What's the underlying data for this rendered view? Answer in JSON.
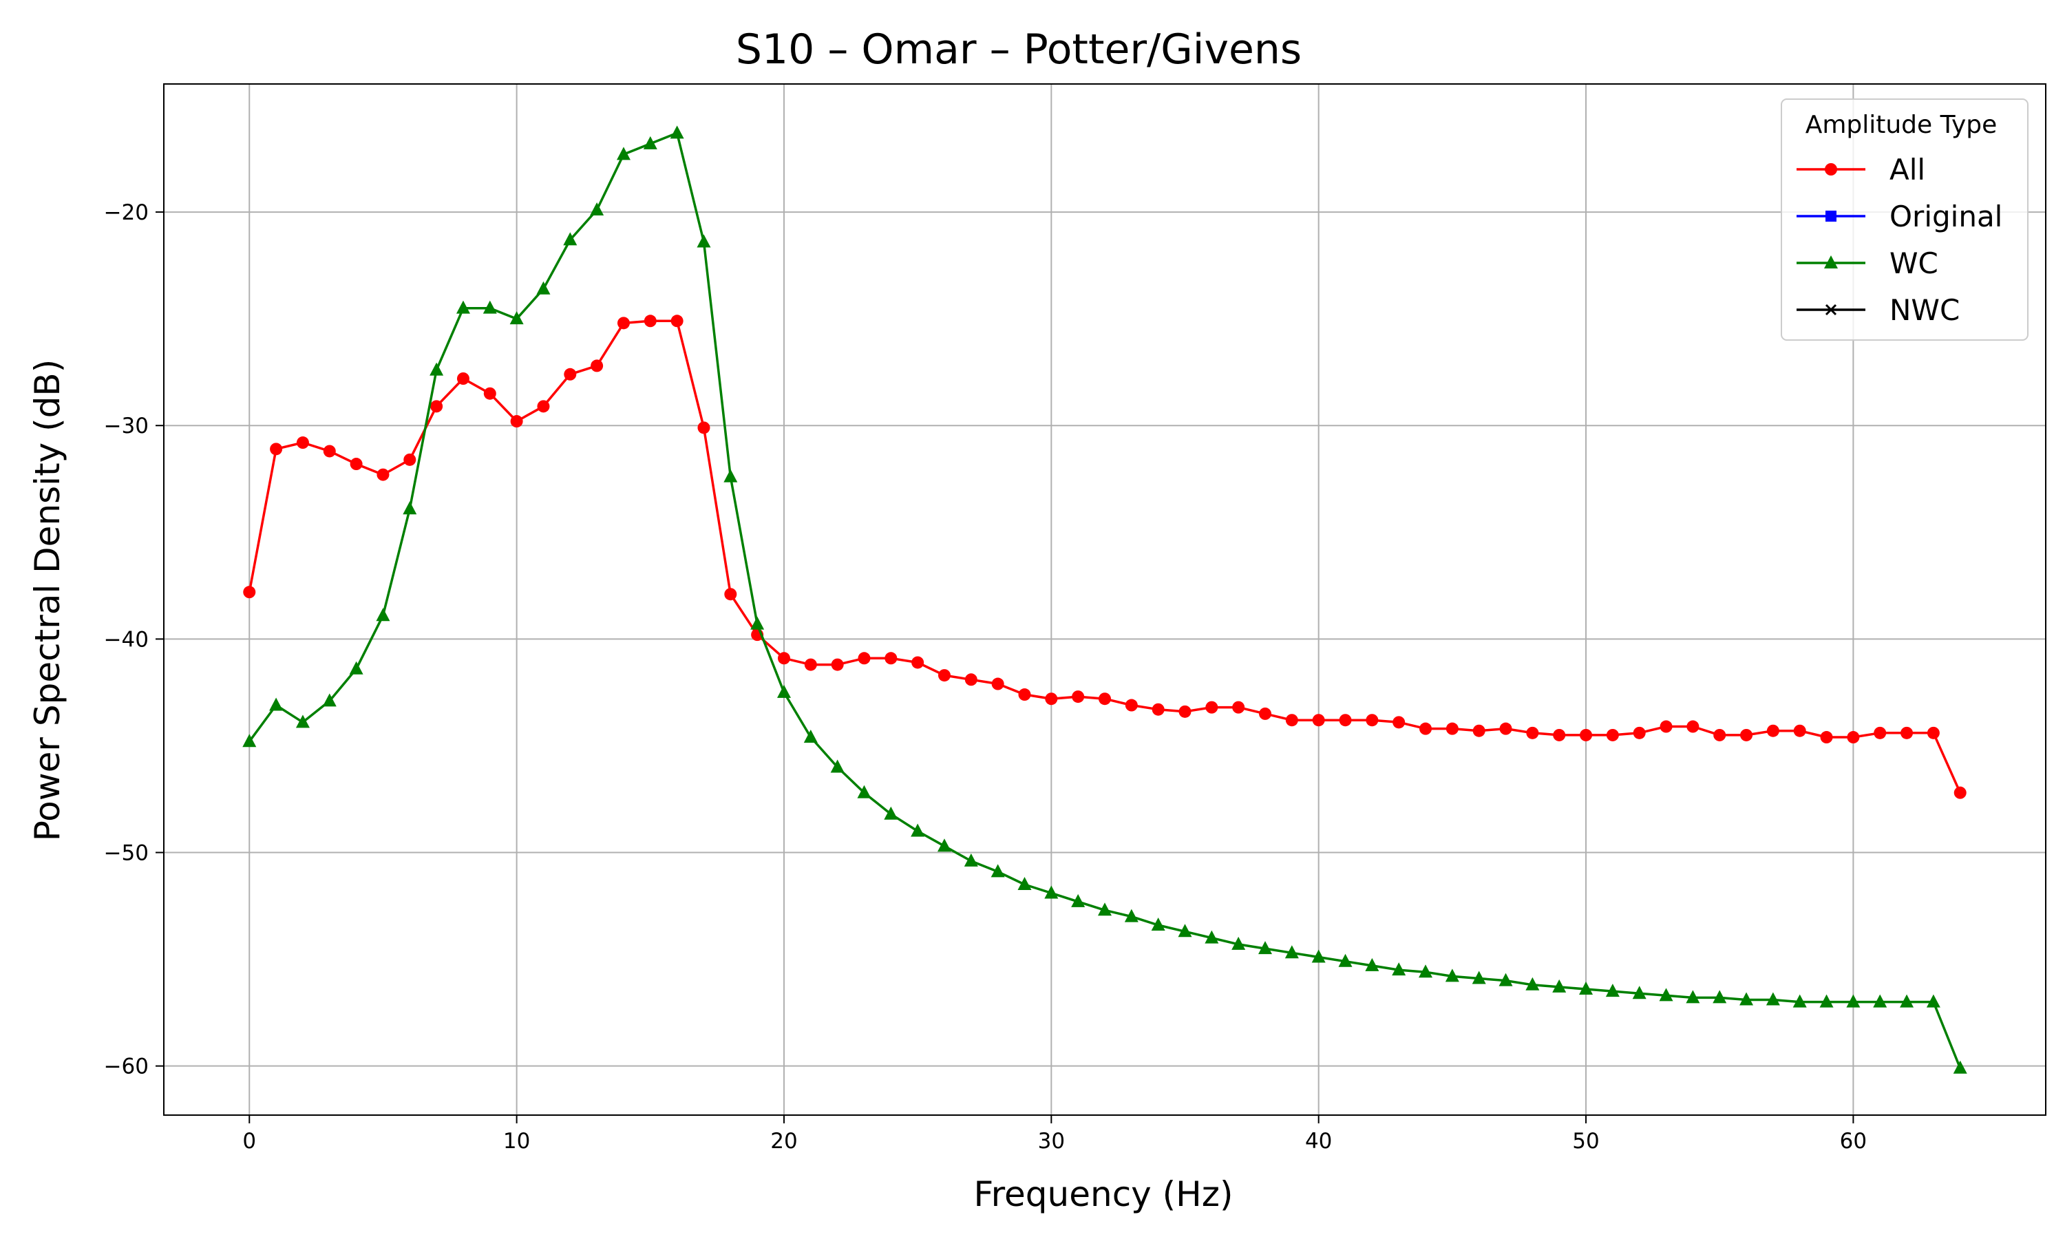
{
  "chart_data": {
    "type": "line",
    "title": "S10 – Omar – Potter/Givens",
    "xlabel": "Frequency (Hz)",
    "ylabel": "Power Spectral Density (dB)",
    "xlim": [
      -3.2,
      67.2
    ],
    "ylim": [
      -62.3,
      -14.0
    ],
    "xticks": [
      0,
      10,
      20,
      30,
      40,
      50,
      60
    ],
    "yticks": [
      -60,
      -50,
      -40,
      -30,
      -20
    ],
    "grid": true,
    "legend": {
      "title": "Amplitude Type",
      "placement": "top-right"
    },
    "series": [
      {
        "name": "All",
        "color": "#ff0000",
        "marker": "circle",
        "x": [
          0,
          1,
          2,
          3,
          4,
          5,
          6,
          7,
          8,
          9,
          10,
          11,
          12,
          13,
          14,
          15,
          16,
          17,
          18,
          19,
          20,
          21,
          22,
          23,
          24,
          25,
          26,
          27,
          28,
          29,
          30,
          31,
          32,
          33,
          34,
          35,
          36,
          37,
          38,
          39,
          40,
          41,
          42,
          43,
          44,
          45,
          46,
          47,
          48,
          49,
          50,
          51,
          52,
          53,
          54,
          55,
          56,
          57,
          58,
          59,
          60,
          61,
          62,
          63,
          64
        ],
        "values": [
          -37.8,
          -31.1,
          -30.8,
          -31.2,
          -31.8,
          -32.3,
          -31.6,
          -29.1,
          -27.8,
          -28.5,
          -29.8,
          -29.1,
          -27.6,
          -27.2,
          -25.2,
          -25.1,
          -25.1,
          -30.1,
          -37.9,
          -39.8,
          -40.9,
          -41.2,
          -41.2,
          -40.9,
          -40.9,
          -41.1,
          -41.7,
          -41.9,
          -42.1,
          -42.6,
          -42.8,
          -42.7,
          -42.8,
          -43.1,
          -43.3,
          -43.4,
          -43.2,
          -43.2,
          -43.5,
          -43.8,
          -43.8,
          -43.8,
          -43.8,
          -43.9,
          -44.2,
          -44.2,
          -44.3,
          -44.2,
          -44.4,
          -44.5,
          -44.5,
          -44.5,
          -44.4,
          -44.1,
          -44.1,
          -44.5,
          -44.5,
          -44.3,
          -44.3,
          -44.6,
          -44.6,
          -44.4,
          -44.4,
          -44.4,
          -47.2
        ]
      },
      {
        "name": "Original",
        "color": "#0000ff",
        "marker": "square",
        "x": [],
        "values": []
      },
      {
        "name": "WC",
        "color": "#008000",
        "marker": "triangle",
        "x": [
          0,
          1,
          2,
          3,
          4,
          5,
          6,
          7,
          8,
          9,
          10,
          11,
          12,
          13,
          14,
          15,
          16,
          17,
          18,
          19,
          20,
          21,
          22,
          23,
          24,
          25,
          26,
          27,
          28,
          29,
          30,
          31,
          32,
          33,
          34,
          35,
          36,
          37,
          38,
          39,
          40,
          41,
          42,
          43,
          44,
          45,
          46,
          47,
          48,
          49,
          50,
          51,
          52,
          53,
          54,
          55,
          56,
          57,
          58,
          59,
          60,
          61,
          62,
          63,
          64
        ],
        "values": [
          -44.8,
          -43.1,
          -43.9,
          -42.9,
          -41.4,
          -38.9,
          -33.9,
          -27.4,
          -24.5,
          -24.5,
          -25.0,
          -23.6,
          -21.3,
          -19.9,
          -17.3,
          -16.8,
          -16.3,
          -21.4,
          -32.4,
          -39.3,
          -42.5,
          -44.6,
          -46.0,
          -47.2,
          -48.2,
          -49.0,
          -49.7,
          -50.4,
          -50.9,
          -51.5,
          -51.9,
          -52.3,
          -52.7,
          -53.0,
          -53.4,
          -53.7,
          -54.0,
          -54.3,
          -54.5,
          -54.7,
          -54.9,
          -55.1,
          -55.3,
          -55.5,
          -55.6,
          -55.8,
          -55.9,
          -56.0,
          -56.2,
          -56.3,
          -56.4,
          -56.5,
          -56.6,
          -56.7,
          -56.8,
          -56.8,
          -56.9,
          -56.9,
          -57.0,
          -57.0,
          -57.0,
          -57.0,
          -57.0,
          -57.0,
          -60.1
        ]
      },
      {
        "name": "NWC",
        "color": "#000000",
        "marker": "x",
        "x": [],
        "values": []
      }
    ]
  }
}
